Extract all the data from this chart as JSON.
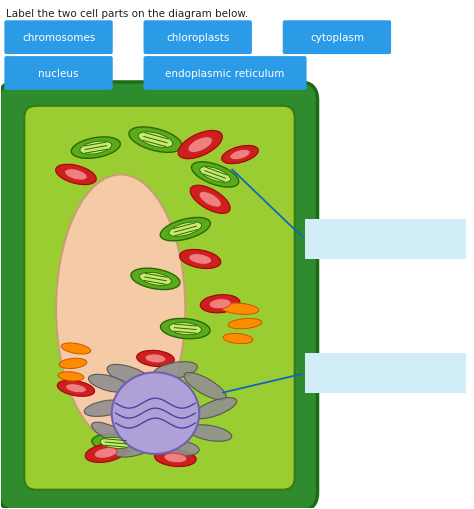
{
  "title_text": "Label the two cell parts on the diagram below.",
  "button_labels": [
    "chromosomes",
    "chloroplasts",
    "cytoplasm",
    "nucleus",
    "endoplasmic reticulum"
  ],
  "button_color": "#2b9be8",
  "button_text_color": "white",
  "cell_outer_color": "#2E8B2E",
  "cell_outer_edge": "#1a6b1a",
  "cell_inner_color": "#9ACD32",
  "cell_inner_edge": "#3a7a10",
  "vacuole_color": "#F5CBA7",
  "vacuole_border_color": "#c8a070",
  "nucleus_color": "#B0A0D8",
  "nucleus_border": "#7060B0",
  "er_color": "#909090",
  "er_border": "#505050",
  "chloro_outer": "#5aaa20",
  "chloro_inner": "#c8e870",
  "chloro_line": "#2a6a00",
  "mito_outer": "#cc2020",
  "mito_inner": "#f08080",
  "mito_line": "#aa0000",
  "golgi_color": "#FF8C00",
  "golgi_border": "#cc5500",
  "answer_box_color": "#d0edf8",
  "arrow_color": "#1565C0",
  "background_color": "white"
}
